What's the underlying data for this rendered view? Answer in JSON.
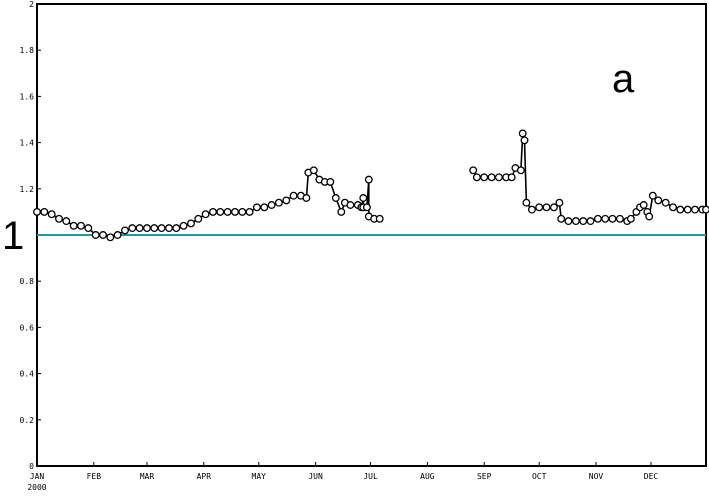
{
  "chart_data": {
    "type": "line",
    "title": "",
    "xlabel": "",
    "ylabel": "",
    "panel_label": "a",
    "reference_line": {
      "y": 1,
      "label": "1",
      "color": "#1a9aa6"
    },
    "ylim": [
      0,
      2
    ],
    "y_ticks": [
      0,
      0.2,
      0.4,
      0.6,
      0.8,
      1,
      1.2,
      1.4,
      1.6,
      1.8,
      2
    ],
    "y_tick_labels": [
      "0",
      "0.2",
      "0.4",
      "0.6",
      "0.8",
      "1",
      "1.2",
      "1.4",
      "1.6",
      "1.8",
      "2"
    ],
    "x_range": [
      "2000-01-01",
      "2000-12-31"
    ],
    "x_ticks": [
      {
        "date": "2000-01-01",
        "label": "JAN",
        "sublabel": "2000"
      },
      {
        "date": "2000-02-01",
        "label": "FEB"
      },
      {
        "date": "2000-03-01",
        "label": "MAR"
      },
      {
        "date": "2000-04-01",
        "label": "APR"
      },
      {
        "date": "2000-05-01",
        "label": "MAY"
      },
      {
        "date": "2000-06-01",
        "label": "JUN"
      },
      {
        "date": "2000-07-01",
        "label": "JUL"
      },
      {
        "date": "2000-08-01",
        "label": "AUG"
      },
      {
        "date": "2000-09-01",
        "label": "SEP"
      },
      {
        "date": "2000-10-01",
        "label": "OCT"
      },
      {
        "date": "2000-11-01",
        "label": "NOV"
      },
      {
        "date": "2000-12-01",
        "label": "DEC"
      }
    ],
    "series": [
      {
        "color": "#000000",
        "marker": "open-circle",
        "segments": [
          [
            [
              "2000-01-01",
              1.1
            ],
            [
              "2000-01-05",
              1.1
            ],
            [
              "2000-01-09",
              1.09
            ],
            [
              "2000-01-13",
              1.07
            ],
            [
              "2000-01-17",
              1.06
            ],
            [
              "2000-01-21",
              1.04
            ],
            [
              "2000-01-25",
              1.04
            ],
            [
              "2000-01-29",
              1.03
            ],
            [
              "2000-02-02",
              1.0
            ],
            [
              "2000-02-06",
              1.0
            ],
            [
              "2000-02-10",
              0.99
            ],
            [
              "2000-02-14",
              1.0
            ],
            [
              "2000-02-18",
              1.02
            ],
            [
              "2000-02-22",
              1.03
            ],
            [
              "2000-02-26",
              1.03
            ],
            [
              "2000-03-01",
              1.03
            ],
            [
              "2000-03-05",
              1.03
            ],
            [
              "2000-03-09",
              1.03
            ],
            [
              "2000-03-13",
              1.03
            ],
            [
              "2000-03-17",
              1.03
            ],
            [
              "2000-03-21",
              1.04
            ],
            [
              "2000-03-25",
              1.05
            ],
            [
              "2000-03-29",
              1.07
            ],
            [
              "2000-04-02",
              1.09
            ],
            [
              "2000-04-06",
              1.1
            ],
            [
              "2000-04-10",
              1.1
            ],
            [
              "2000-04-14",
              1.1
            ],
            [
              "2000-04-18",
              1.1
            ],
            [
              "2000-04-22",
              1.1
            ],
            [
              "2000-04-26",
              1.1
            ],
            [
              "2000-04-30",
              1.12
            ],
            [
              "2000-05-04",
              1.12
            ],
            [
              "2000-05-08",
              1.13
            ],
            [
              "2000-05-12",
              1.14
            ],
            [
              "2000-05-16",
              1.15
            ],
            [
              "2000-05-20",
              1.17
            ],
            [
              "2000-05-24",
              1.17
            ],
            [
              "2000-05-27",
              1.16
            ],
            [
              "2000-05-28",
              1.27
            ],
            [
              "2000-05-31",
              1.28
            ],
            [
              "2000-06-03",
              1.24
            ],
            [
              "2000-06-06",
              1.23
            ],
            [
              "2000-06-09",
              1.23
            ],
            [
              "2000-06-12",
              1.16
            ],
            [
              "2000-06-15",
              1.1
            ],
            [
              "2000-06-17",
              1.14
            ],
            [
              "2000-06-20",
              1.13
            ],
            [
              "2000-06-24",
              1.13
            ],
            [
              "2000-06-26",
              1.12
            ],
            [
              "2000-06-27",
              1.16
            ],
            [
              "2000-06-27",
              1.12
            ],
            [
              "2000-06-29",
              1.12
            ],
            [
              "2000-06-30",
              1.24
            ],
            [
              "2000-06-30",
              1.08
            ],
            [
              "2000-07-03",
              1.07
            ],
            [
              "2000-07-06",
              1.07
            ]
          ],
          [
            [
              "2000-08-26",
              1.28
            ],
            [
              "2000-08-28",
              1.25
            ],
            [
              "2000-09-01",
              1.25
            ],
            [
              "2000-09-05",
              1.25
            ],
            [
              "2000-09-09",
              1.25
            ],
            [
              "2000-09-13",
              1.25
            ],
            [
              "2000-09-16",
              1.25
            ],
            [
              "2000-09-18",
              1.29
            ],
            [
              "2000-09-21",
              1.28
            ],
            [
              "2000-09-22",
              1.44
            ],
            [
              "2000-09-23",
              1.41
            ],
            [
              "2000-09-24",
              1.14
            ],
            [
              "2000-09-27",
              1.11
            ],
            [
              "2000-10-01",
              1.12
            ],
            [
              "2000-10-05",
              1.12
            ],
            [
              "2000-10-09",
              1.12
            ],
            [
              "2000-10-12",
              1.14
            ],
            [
              "2000-10-13",
              1.07
            ],
            [
              "2000-10-17",
              1.06
            ],
            [
              "2000-10-21",
              1.06
            ],
            [
              "2000-10-25",
              1.06
            ],
            [
              "2000-10-29",
              1.06
            ],
            [
              "2000-11-02",
              1.07
            ],
            [
              "2000-11-06",
              1.07
            ],
            [
              "2000-11-10",
              1.07
            ],
            [
              "2000-11-14",
              1.07
            ],
            [
              "2000-11-18",
              1.06
            ],
            [
              "2000-11-20",
              1.07
            ],
            [
              "2000-11-23",
              1.1
            ],
            [
              "2000-11-25",
              1.12
            ],
            [
              "2000-11-27",
              1.13
            ],
            [
              "2000-11-29",
              1.1
            ],
            [
              "2000-11-30",
              1.08
            ],
            [
              "2000-12-02",
              1.17
            ],
            [
              "2000-12-05",
              1.15
            ],
            [
              "2000-12-09",
              1.14
            ],
            [
              "2000-12-13",
              1.12
            ],
            [
              "2000-12-17",
              1.11
            ],
            [
              "2000-12-21",
              1.11
            ],
            [
              "2000-12-25",
              1.11
            ],
            [
              "2000-12-29",
              1.11
            ],
            [
              "2000-12-31",
              1.11
            ]
          ]
        ]
      }
    ]
  }
}
